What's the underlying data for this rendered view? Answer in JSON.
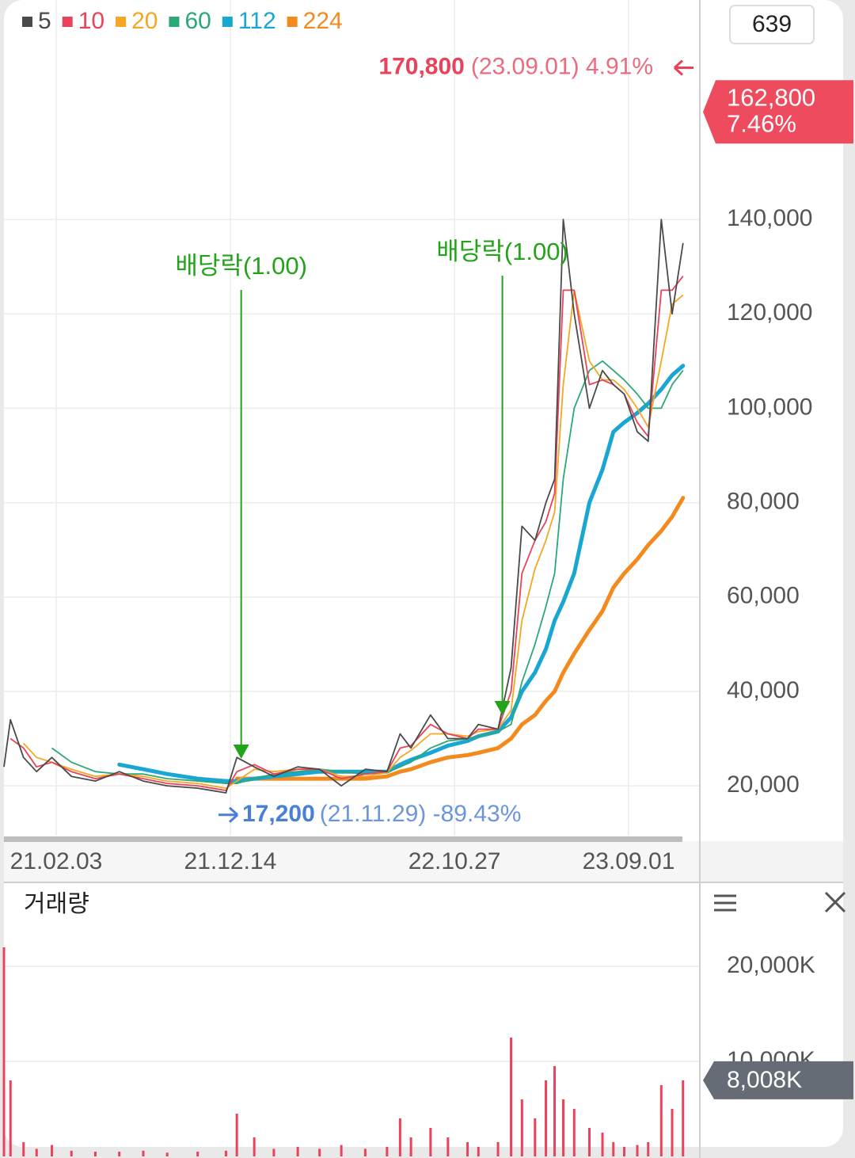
{
  "chart_data": [
    {
      "type": "line",
      "badge": "639",
      "x": [
        0,
        3,
        9,
        15,
        22,
        31,
        42,
        53,
        64,
        75,
        89,
        102,
        107,
        115,
        124,
        135,
        145,
        155,
        166,
        176,
        182,
        187,
        196,
        204,
        213,
        218,
        227,
        233,
        238,
        244,
        249,
        253,
        257,
        262,
        269,
        275,
        280,
        285,
        291,
        296,
        302,
        307,
        312
      ],
      "xlim": [
        0,
        319
      ],
      "xticks": [
        {
          "value": 24,
          "label": "21.02.03"
        },
        {
          "value": 104,
          "label": "21.12.14"
        },
        {
          "value": 207,
          "label": "22.10.27"
        },
        {
          "value": 287,
          "label": "23.09.01"
        }
      ],
      "ylim": [
        8600,
        186500
      ],
      "yticks": [
        {
          "value": 20000,
          "label": "20,000"
        },
        {
          "value": 40000,
          "label": "40,000"
        },
        {
          "value": 60000,
          "label": "60,000"
        },
        {
          "value": 80000,
          "label": "80,000"
        },
        {
          "value": 100000,
          "label": "100,000"
        },
        {
          "value": 120000,
          "label": "120,000"
        },
        {
          "value": 140000,
          "label": "140,000"
        }
      ],
      "grid": true,
      "series": [
        {
          "name": "5",
          "color": "#4a4a4a",
          "values": [
            24000,
            34000,
            26000,
            23000,
            26000,
            22000,
            21000,
            23000,
            21000,
            20000,
            19500,
            18500,
            26000,
            24000,
            22000,
            24000,
            23500,
            20000,
            23500,
            23000,
            31000,
            28000,
            35000,
            30000,
            30000,
            33000,
            32000,
            45000,
            75000,
            72000,
            80000,
            85000,
            140000,
            120000,
            100000,
            108000,
            105000,
            103000,
            95000,
            93000,
            140000,
            120000,
            135000
          ]
        },
        {
          "name": "10",
          "color": "#e8435a",
          "values": [
            null,
            30000,
            28000,
            24000,
            25000,
            23000,
            21500,
            22500,
            21500,
            20500,
            20000,
            19000,
            23000,
            24500,
            22500,
            23500,
            23500,
            21500,
            22500,
            23000,
            28000,
            28500,
            33000,
            31000,
            30000,
            32000,
            32000,
            40000,
            65000,
            72000,
            76000,
            82000,
            125000,
            125000,
            105000,
            106000,
            105000,
            103000,
            97000,
            94000,
            125000,
            125000,
            128000
          ]
        },
        {
          "name": "20",
          "color": "#f5a623",
          "values": [
            null,
            null,
            29000,
            26000,
            25000,
            23500,
            22000,
            22500,
            22000,
            21000,
            20500,
            19500,
            21000,
            23500,
            23000,
            23500,
            23500,
            22000,
            22000,
            22800,
            26000,
            27500,
            31000,
            31000,
            30500,
            31500,
            32000,
            36000,
            55000,
            66000,
            72000,
            78000,
            105000,
            125000,
            110000,
            106000,
            106000,
            104000,
            100000,
            96000,
            110000,
            122000,
            124000
          ]
        },
        {
          "name": "60",
          "color": "#2aa876",
          "values": [
            null,
            null,
            null,
            null,
            28000,
            25000,
            23000,
            22500,
            22500,
            21500,
            21000,
            20500,
            20500,
            21500,
            22500,
            23000,
            23500,
            23000,
            22500,
            22800,
            24000,
            25000,
            28000,
            29500,
            30000,
            30500,
            31500,
            33000,
            42000,
            50000,
            58000,
            65000,
            85000,
            100000,
            108000,
            110000,
            108000,
            106000,
            103000,
            100000,
            100000,
            105000,
            108000
          ]
        },
        {
          "name": "112",
          "color": "#1aa6d2",
          "values": [
            null,
            null,
            null,
            null,
            null,
            null,
            null,
            24500,
            23500,
            22500,
            21500,
            21000,
            21000,
            21500,
            22000,
            22500,
            23000,
            23000,
            23000,
            23000,
            24500,
            25500,
            27000,
            28500,
            29500,
            30500,
            31500,
            34500,
            40000,
            44000,
            49000,
            55000,
            59000,
            65000,
            80000,
            87000,
            95000,
            97000,
            99000,
            101000,
            104000,
            107000,
            109000
          ]
        },
        {
          "name": "224",
          "color": "#f28a1d",
          "values": [
            null,
            null,
            null,
            null,
            null,
            null,
            null,
            null,
            null,
            null,
            null,
            null,
            21500,
            21500,
            21500,
            21500,
            21500,
            21500,
            21500,
            22000,
            23000,
            23500,
            25000,
            26000,
            26500,
            27000,
            28000,
            30000,
            33000,
            35000,
            38000,
            40000,
            44000,
            48000,
            53000,
            57000,
            62000,
            65000,
            68000,
            71000,
            74000,
            77000,
            81000
          ]
        }
      ],
      "high": {
        "value": 170800,
        "label": "170,800",
        "detail": "(23.09.01) 4.91%"
      },
      "low": {
        "value": 17200,
        "label": "17,200",
        "detail": "(21.11.29) -89.43%"
      },
      "current": {
        "value": 162800,
        "label": "162,800",
        "change": "7.46%"
      },
      "events": [
        {
          "x": 109,
          "label": "배당락(1.00)"
        },
        {
          "x": 229,
          "label": "배당락(1.00)"
        }
      ]
    },
    {
      "type": "bar",
      "title": "거래량",
      "color": "#e8435a",
      "x": [
        0,
        3,
        9,
        15,
        22,
        31,
        42,
        53,
        64,
        75,
        89,
        102,
        107,
        115,
        124,
        135,
        145,
        155,
        166,
        176,
        182,
        187,
        196,
        204,
        213,
        218,
        227,
        233,
        238,
        244,
        249,
        253,
        257,
        262,
        269,
        275,
        280,
        285,
        291,
        296,
        302,
        307,
        312
      ],
      "xlim": [
        0,
        319
      ],
      "values": [
        22000,
        8000,
        1500,
        800,
        1200,
        600,
        500,
        500,
        600,
        400,
        500,
        600,
        4500,
        2000,
        800,
        1000,
        800,
        1200,
        800,
        1000,
        4000,
        2000,
        3000,
        2000,
        1500,
        1000,
        1500,
        12500,
        6000,
        4000,
        8000,
        9500,
        6000,
        5000,
        3000,
        2500,
        1500,
        1000,
        1200,
        1500,
        7500,
        5000,
        8008
      ],
      "ylim": [
        0,
        28500
      ],
      "yticks": [
        {
          "value": 10000,
          "label": "10,000K"
        },
        {
          "value": 20000,
          "label": "20,000K"
        }
      ],
      "grid": true,
      "current": {
        "value": 8008,
        "label": "8,008K"
      }
    }
  ]
}
